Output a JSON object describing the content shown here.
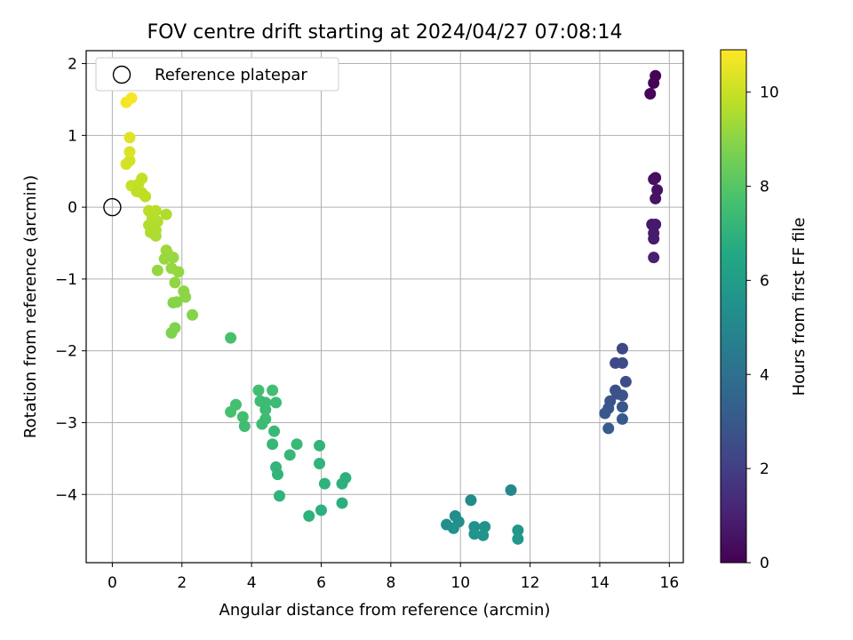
{
  "chart_data": {
    "type": "scatter",
    "title": "FOV centre drift starting at 2024/04/27 07:08:14",
    "xlabel": "Angular distance from reference (arcmin)",
    "ylabel": "Rotation from reference (arcmin)",
    "xlim": [
      -0.75,
      16.4
    ],
    "ylim": [
      -4.95,
      2.18
    ],
    "xticks": [
      0,
      2,
      4,
      6,
      8,
      10,
      12,
      14,
      16
    ],
    "yticks": [
      -4,
      -3,
      -2,
      -1,
      0,
      1,
      2
    ],
    "grid": true,
    "legend": {
      "position": "top-left",
      "entries": [
        "Reference platepar"
      ]
    },
    "reference_point": {
      "x": 0,
      "y": 0,
      "label": "Reference platepar"
    },
    "colorbar": {
      "label": "Hours from first FF file",
      "min": 0,
      "max": 10.9,
      "ticks": [
        0,
        2,
        4,
        6,
        8,
        10
      ],
      "colormap": "viridis"
    },
    "points": [
      {
        "x": 15.6,
        "y": 1.83,
        "c": 0.05
      },
      {
        "x": 15.55,
        "y": 1.73,
        "c": 0.1
      },
      {
        "x": 15.45,
        "y": 1.58,
        "c": 0.15
      },
      {
        "x": 15.6,
        "y": 0.41,
        "c": 0.4
      },
      {
        "x": 15.55,
        "y": 0.39,
        "c": 0.45
      },
      {
        "x": 15.65,
        "y": 0.24,
        "c": 0.5
      },
      {
        "x": 15.6,
        "y": 0.12,
        "c": 0.55
      },
      {
        "x": 15.5,
        "y": -0.24,
        "c": 0.7
      },
      {
        "x": 15.6,
        "y": -0.24,
        "c": 0.75
      },
      {
        "x": 15.55,
        "y": -0.36,
        "c": 0.8
      },
      {
        "x": 15.55,
        "y": -0.44,
        "c": 0.85
      },
      {
        "x": 15.55,
        "y": -0.7,
        "c": 0.95
      },
      {
        "x": 14.65,
        "y": -1.97,
        "c": 2.3
      },
      {
        "x": 14.45,
        "y": -2.17,
        "c": 2.4
      },
      {
        "x": 14.65,
        "y": -2.17,
        "c": 2.45
      },
      {
        "x": 14.75,
        "y": -2.43,
        "c": 2.55
      },
      {
        "x": 14.45,
        "y": -2.55,
        "c": 2.65
      },
      {
        "x": 14.5,
        "y": -2.6,
        "c": 2.7
      },
      {
        "x": 14.65,
        "y": -2.62,
        "c": 2.75
      },
      {
        "x": 14.3,
        "y": -2.7,
        "c": 2.8
      },
      {
        "x": 14.25,
        "y": -2.8,
        "c": 2.85
      },
      {
        "x": 14.65,
        "y": -2.78,
        "c": 2.9
      },
      {
        "x": 14.15,
        "y": -2.87,
        "c": 3.0
      },
      {
        "x": 14.65,
        "y": -2.95,
        "c": 3.05
      },
      {
        "x": 14.25,
        "y": -3.08,
        "c": 3.1
      },
      {
        "x": 11.45,
        "y": -3.94,
        "c": 5.1
      },
      {
        "x": 10.3,
        "y": -4.08,
        "c": 5.2
      },
      {
        "x": 9.85,
        "y": -4.3,
        "c": 5.3
      },
      {
        "x": 9.95,
        "y": -4.38,
        "c": 5.35
      },
      {
        "x": 9.6,
        "y": -4.42,
        "c": 5.4
      },
      {
        "x": 9.8,
        "y": -4.47,
        "c": 5.45
      },
      {
        "x": 10.4,
        "y": -4.45,
        "c": 5.5
      },
      {
        "x": 10.7,
        "y": -4.45,
        "c": 5.55
      },
      {
        "x": 10.4,
        "y": -4.55,
        "c": 5.6
      },
      {
        "x": 10.65,
        "y": -4.57,
        "c": 5.65
      },
      {
        "x": 11.65,
        "y": -4.5,
        "c": 5.75
      },
      {
        "x": 11.65,
        "y": -4.62,
        "c": 5.8
      },
      {
        "x": 3.4,
        "y": -1.82,
        "c": 7.7
      },
      {
        "x": 4.2,
        "y": -2.55,
        "c": 7.6
      },
      {
        "x": 4.6,
        "y": -2.55,
        "c": 7.55
      },
      {
        "x": 4.25,
        "y": -2.7,
        "c": 7.5
      },
      {
        "x": 4.4,
        "y": -2.72,
        "c": 7.45
      },
      {
        "x": 4.7,
        "y": -2.72,
        "c": 7.4
      },
      {
        "x": 3.55,
        "y": -2.75,
        "c": 7.65
      },
      {
        "x": 3.4,
        "y": -2.85,
        "c": 7.7
      },
      {
        "x": 4.4,
        "y": -2.82,
        "c": 7.45
      },
      {
        "x": 3.75,
        "y": -2.92,
        "c": 7.6
      },
      {
        "x": 4.4,
        "y": -2.95,
        "c": 7.4
      },
      {
        "x": 4.3,
        "y": -3.02,
        "c": 7.45
      },
      {
        "x": 3.8,
        "y": -3.05,
        "c": 7.5
      },
      {
        "x": 4.65,
        "y": -3.12,
        "c": 7.3
      },
      {
        "x": 4.6,
        "y": -3.3,
        "c": 7.25
      },
      {
        "x": 5.3,
        "y": -3.3,
        "c": 7.3
      },
      {
        "x": 5.1,
        "y": -3.45,
        "c": 7.2
      },
      {
        "x": 5.95,
        "y": -3.32,
        "c": 7.1
      },
      {
        "x": 5.95,
        "y": -3.57,
        "c": 7.05
      },
      {
        "x": 4.7,
        "y": -3.62,
        "c": 7.15
      },
      {
        "x": 4.75,
        "y": -3.72,
        "c": 7.1
      },
      {
        "x": 6.7,
        "y": -3.77,
        "c": 6.95
      },
      {
        "x": 6.1,
        "y": -3.85,
        "c": 7.0
      },
      {
        "x": 6.6,
        "y": -3.85,
        "c": 6.9
      },
      {
        "x": 4.8,
        "y": -4.02,
        "c": 7.05
      },
      {
        "x": 6.6,
        "y": -4.12,
        "c": 6.85
      },
      {
        "x": 6.0,
        "y": -4.22,
        "c": 6.9
      },
      {
        "x": 5.65,
        "y": -4.3,
        "c": 6.95
      },
      {
        "x": 2.3,
        "y": -1.5,
        "c": 8.9
      },
      {
        "x": 2.1,
        "y": -1.25,
        "c": 9.0
      },
      {
        "x": 2.05,
        "y": -1.17,
        "c": 9.0
      },
      {
        "x": 1.8,
        "y": -1.05,
        "c": 9.1
      },
      {
        "x": 1.75,
        "y": -1.33,
        "c": 8.9
      },
      {
        "x": 1.85,
        "y": -1.32,
        "c": 8.95
      },
      {
        "x": 1.75,
        "y": -0.7,
        "c": 9.2
      },
      {
        "x": 1.9,
        "y": -0.9,
        "c": 9.15
      },
      {
        "x": 1.7,
        "y": -0.85,
        "c": 9.15
      },
      {
        "x": 1.55,
        "y": -0.6,
        "c": 9.3
      },
      {
        "x": 1.6,
        "y": -0.65,
        "c": 9.25
      },
      {
        "x": 1.5,
        "y": -0.72,
        "c": 9.2
      },
      {
        "x": 1.3,
        "y": -0.88,
        "c": 9.15
      },
      {
        "x": 1.8,
        "y": -1.68,
        "c": 8.8
      },
      {
        "x": 1.7,
        "y": -1.75,
        "c": 8.8
      },
      {
        "x": 1.55,
        "y": -0.1,
        "c": 9.6
      },
      {
        "x": 1.25,
        "y": -0.05,
        "c": 9.7
      },
      {
        "x": 1.05,
        "y": -0.05,
        "c": 9.75
      },
      {
        "x": 1.15,
        "y": -0.15,
        "c": 9.7
      },
      {
        "x": 1.3,
        "y": -0.2,
        "c": 9.65
      },
      {
        "x": 1.05,
        "y": -0.25,
        "c": 9.65
      },
      {
        "x": 1.25,
        "y": -0.32,
        "c": 9.6
      },
      {
        "x": 1.1,
        "y": -0.35,
        "c": 9.6
      },
      {
        "x": 1.25,
        "y": -0.4,
        "c": 9.55
      },
      {
        "x": 0.55,
        "y": 0.3,
        "c": 9.95
      },
      {
        "x": 0.75,
        "y": 0.32,
        "c": 9.9
      },
      {
        "x": 0.85,
        "y": 0.4,
        "c": 9.9
      },
      {
        "x": 0.7,
        "y": 0.22,
        "c": 9.85
      },
      {
        "x": 0.85,
        "y": 0.2,
        "c": 9.85
      },
      {
        "x": 0.95,
        "y": 0.15,
        "c": 9.8
      },
      {
        "x": 0.4,
        "y": 0.6,
        "c": 10.2
      },
      {
        "x": 0.5,
        "y": 0.65,
        "c": 10.2
      },
      {
        "x": 0.5,
        "y": 0.77,
        "c": 10.3
      },
      {
        "x": 0.5,
        "y": 0.97,
        "c": 10.4
      },
      {
        "x": 0.4,
        "y": 1.46,
        "c": 10.75
      },
      {
        "x": 0.55,
        "y": 1.52,
        "c": 10.8
      }
    ]
  }
}
